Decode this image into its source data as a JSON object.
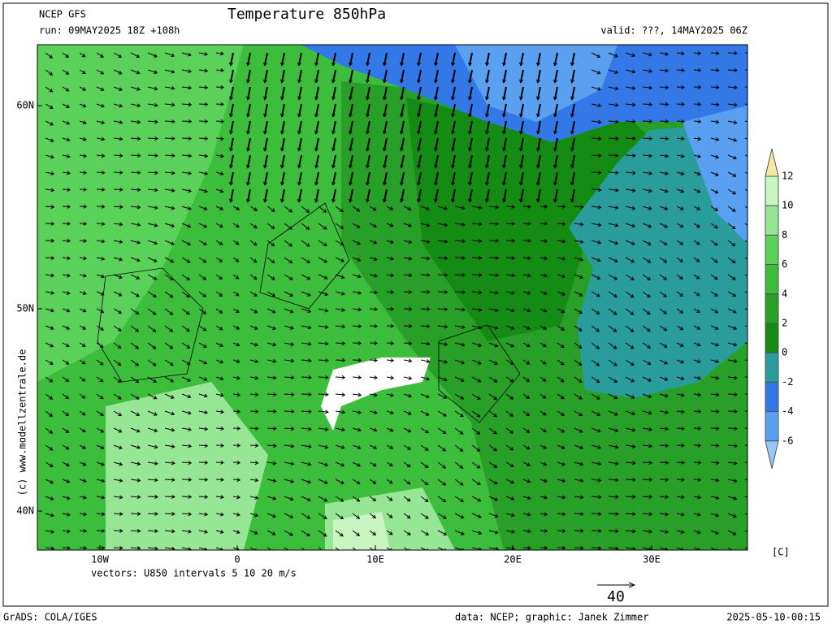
{
  "header": {
    "source": "NCEP GFS",
    "title": "Temperature 850hPa",
    "run": "run: 09MAY2025 18Z +108h",
    "valid": "valid: ???, 14MAY2025 06Z"
  },
  "axes": {
    "lat_labels": [
      "60N",
      "50N",
      "40N"
    ],
    "lon_labels": [
      "10W",
      "0",
      "10E",
      "20E",
      "30E"
    ]
  },
  "vectors": {
    "note": "vectors: U850 intervals 5 10 20 m/s",
    "reference": "40"
  },
  "colorbar": {
    "levels": [
      12,
      10,
      8,
      6,
      4,
      2,
      0,
      -2,
      -4,
      -6
    ],
    "colors": [
      "#f2eaa0",
      "#c8f5c0",
      "#96e696",
      "#5ad25a",
      "#3cbe3c",
      "#28a028",
      "#148c14",
      "#2a9c9c",
      "#3278e6",
      "#5aa0f0",
      "#96c8f0"
    ],
    "unit": "[C]"
  },
  "watermark": "(c) www.modellzentrale.de",
  "footer": {
    "software": "GrADS: COLA/IGES",
    "credit": "data: NCEP; graphic: Janek Zimmer",
    "timestamp": "2025-05-10-00:15"
  }
}
